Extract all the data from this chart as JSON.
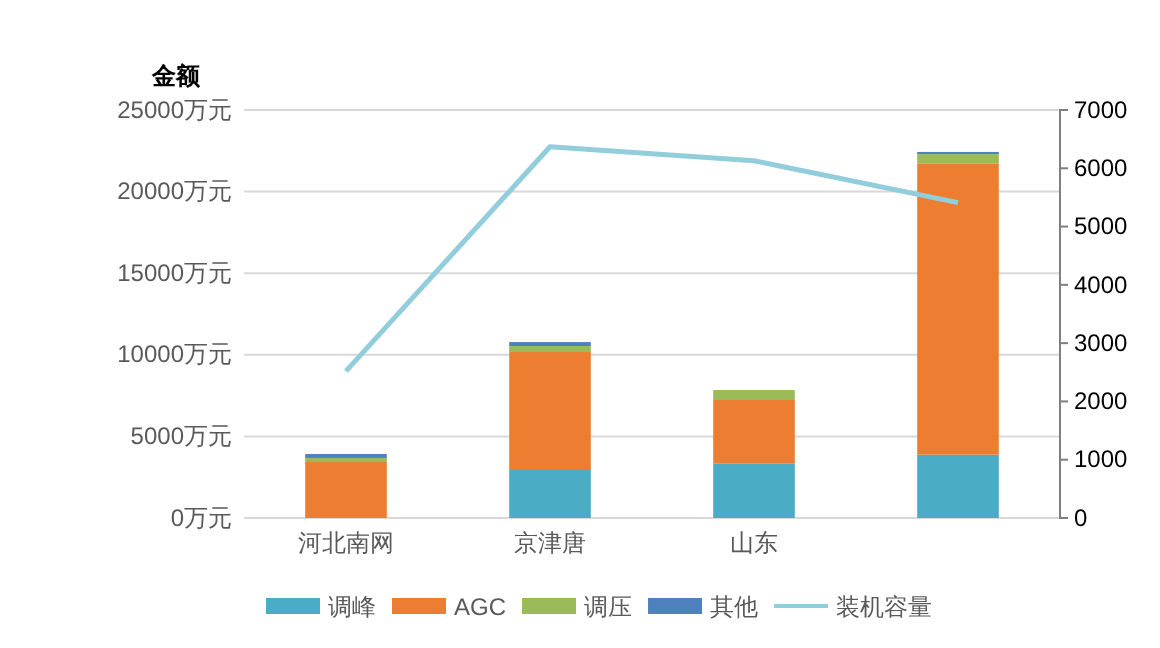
{
  "chart_data": {
    "type": "bar",
    "stacked": true,
    "ylabel": "金额",
    "categories": [
      "河北南网",
      "京津唐",
      "山东",
      null
    ],
    "series": [
      {
        "name": "调峰",
        "color": "#4bacc6",
        "values": [
          0,
          2940,
          3350,
          3880
        ]
      },
      {
        "name": "AGC",
        "color": "#ed7d31",
        "values": [
          3430,
          7230,
          3880,
          17850
        ]
      },
      {
        "name": "调压",
        "color": "#9bbb59",
        "values": [
          250,
          370,
          610,
          570
        ]
      },
      {
        "name": "其他",
        "color": "#4f81bd",
        "values": [
          240,
          240,
          0,
          130
        ]
      },
      {
        "name": "装机容量",
        "type": "line",
        "axis": "y2",
        "color": "#92cddc",
        "values": [
          2520,
          6370,
          6130,
          5410
        ]
      }
    ],
    "ylim": [
      0,
      25000
    ],
    "yticks": [
      {
        "value": 0,
        "label": "0万元"
      },
      {
        "value": 5000,
        "label": "5000万元"
      },
      {
        "value": 10000,
        "label": "10000万元"
      },
      {
        "value": 15000,
        "label": "15000万元"
      },
      {
        "value": 20000,
        "label": "20000万元"
      },
      {
        "value": 25000,
        "label": "25000万元"
      }
    ],
    "y2lim": [
      0,
      7000
    ],
    "y2ticks": [
      0,
      1000,
      2000,
      3000,
      4000,
      5000,
      6000,
      7000
    ],
    "grid": "y",
    "legend": "bottom"
  }
}
